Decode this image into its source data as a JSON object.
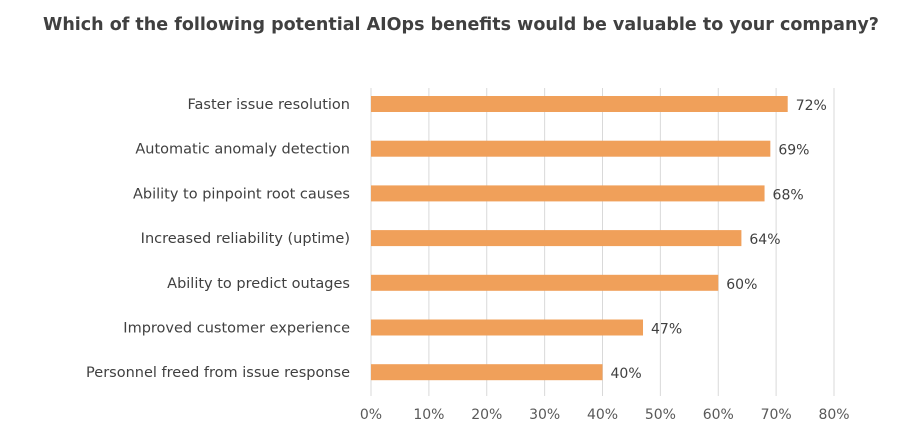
{
  "chart_data": {
    "type": "bar",
    "orientation": "horizontal",
    "title": "Which of the following potential AIOps benefits would be valuable to your company?",
    "categories": [
      "Faster issue resolution",
      "Automatic anomaly detection",
      "Ability to pinpoint root causes",
      "Increased reliability (uptime)",
      "Ability to predict outages",
      "Improved customer experience",
      "Personnel freed from issue response"
    ],
    "values": [
      72,
      69,
      68,
      64,
      60,
      47,
      40
    ],
    "data_labels": [
      "72%",
      "69%",
      "68%",
      "64%",
      "60%",
      "47%",
      "40%"
    ],
    "xlim": [
      0,
      80
    ],
    "x_ticks": [
      "0%",
      "10%",
      "20%",
      "30%",
      "40%",
      "50%",
      "60%",
      "70%",
      "80%"
    ],
    "xlabel": "",
    "ylabel": "",
    "grid": "vertical",
    "legend": "none",
    "bar_color": "#F0A05A"
  }
}
